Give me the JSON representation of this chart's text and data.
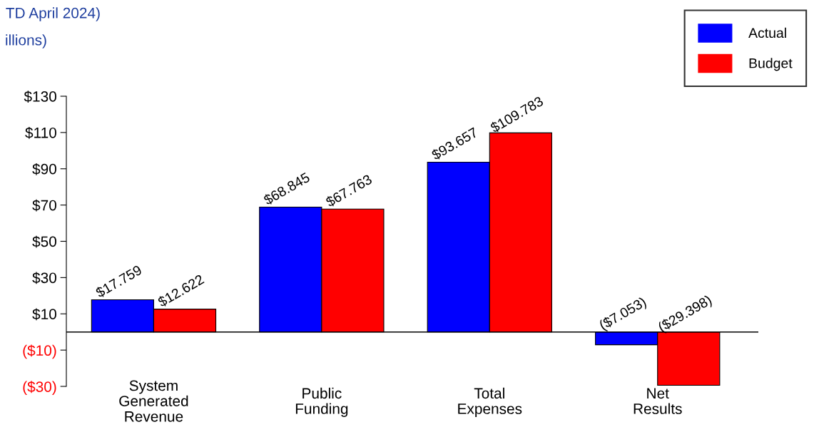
{
  "chart_data": {
    "type": "bar",
    "title": "TD April 2024)",
    "subtitle": "illions)",
    "categories": [
      "System\nGenerated\nRevenue",
      "Public\nFunding",
      "Total\nExpenses",
      "Net\nResults"
    ],
    "series": [
      {
        "name": "Actual",
        "color": "#0000ff",
        "values": [
          17.759,
          68.845,
          93.657,
          -7.053
        ],
        "value_labels": [
          "$17.759",
          "$68.845",
          "$93.657",
          "($7.053)"
        ]
      },
      {
        "name": "Budget",
        "color": "#ff0000",
        "values": [
          12.622,
          67.763,
          109.783,
          -29.398
        ],
        "value_labels": [
          "$12.622",
          "$67.763",
          "$109.783",
          "($29.398)"
        ]
      }
    ],
    "ylim": [
      -30,
      130
    ],
    "yticks": [
      {
        "value": -30,
        "label": "($30)"
      },
      {
        "value": -10,
        "label": "($10)"
      },
      {
        "value": 10,
        "label": "$10"
      },
      {
        "value": 30,
        "label": "$30"
      },
      {
        "value": 50,
        "label": "$50"
      },
      {
        "value": 70,
        "label": "$70"
      },
      {
        "value": 90,
        "label": "$90"
      },
      {
        "value": 110,
        "label": "$110"
      },
      {
        "value": 130,
        "label": "$130"
      }
    ],
    "grid": false,
    "legend": "top right"
  }
}
